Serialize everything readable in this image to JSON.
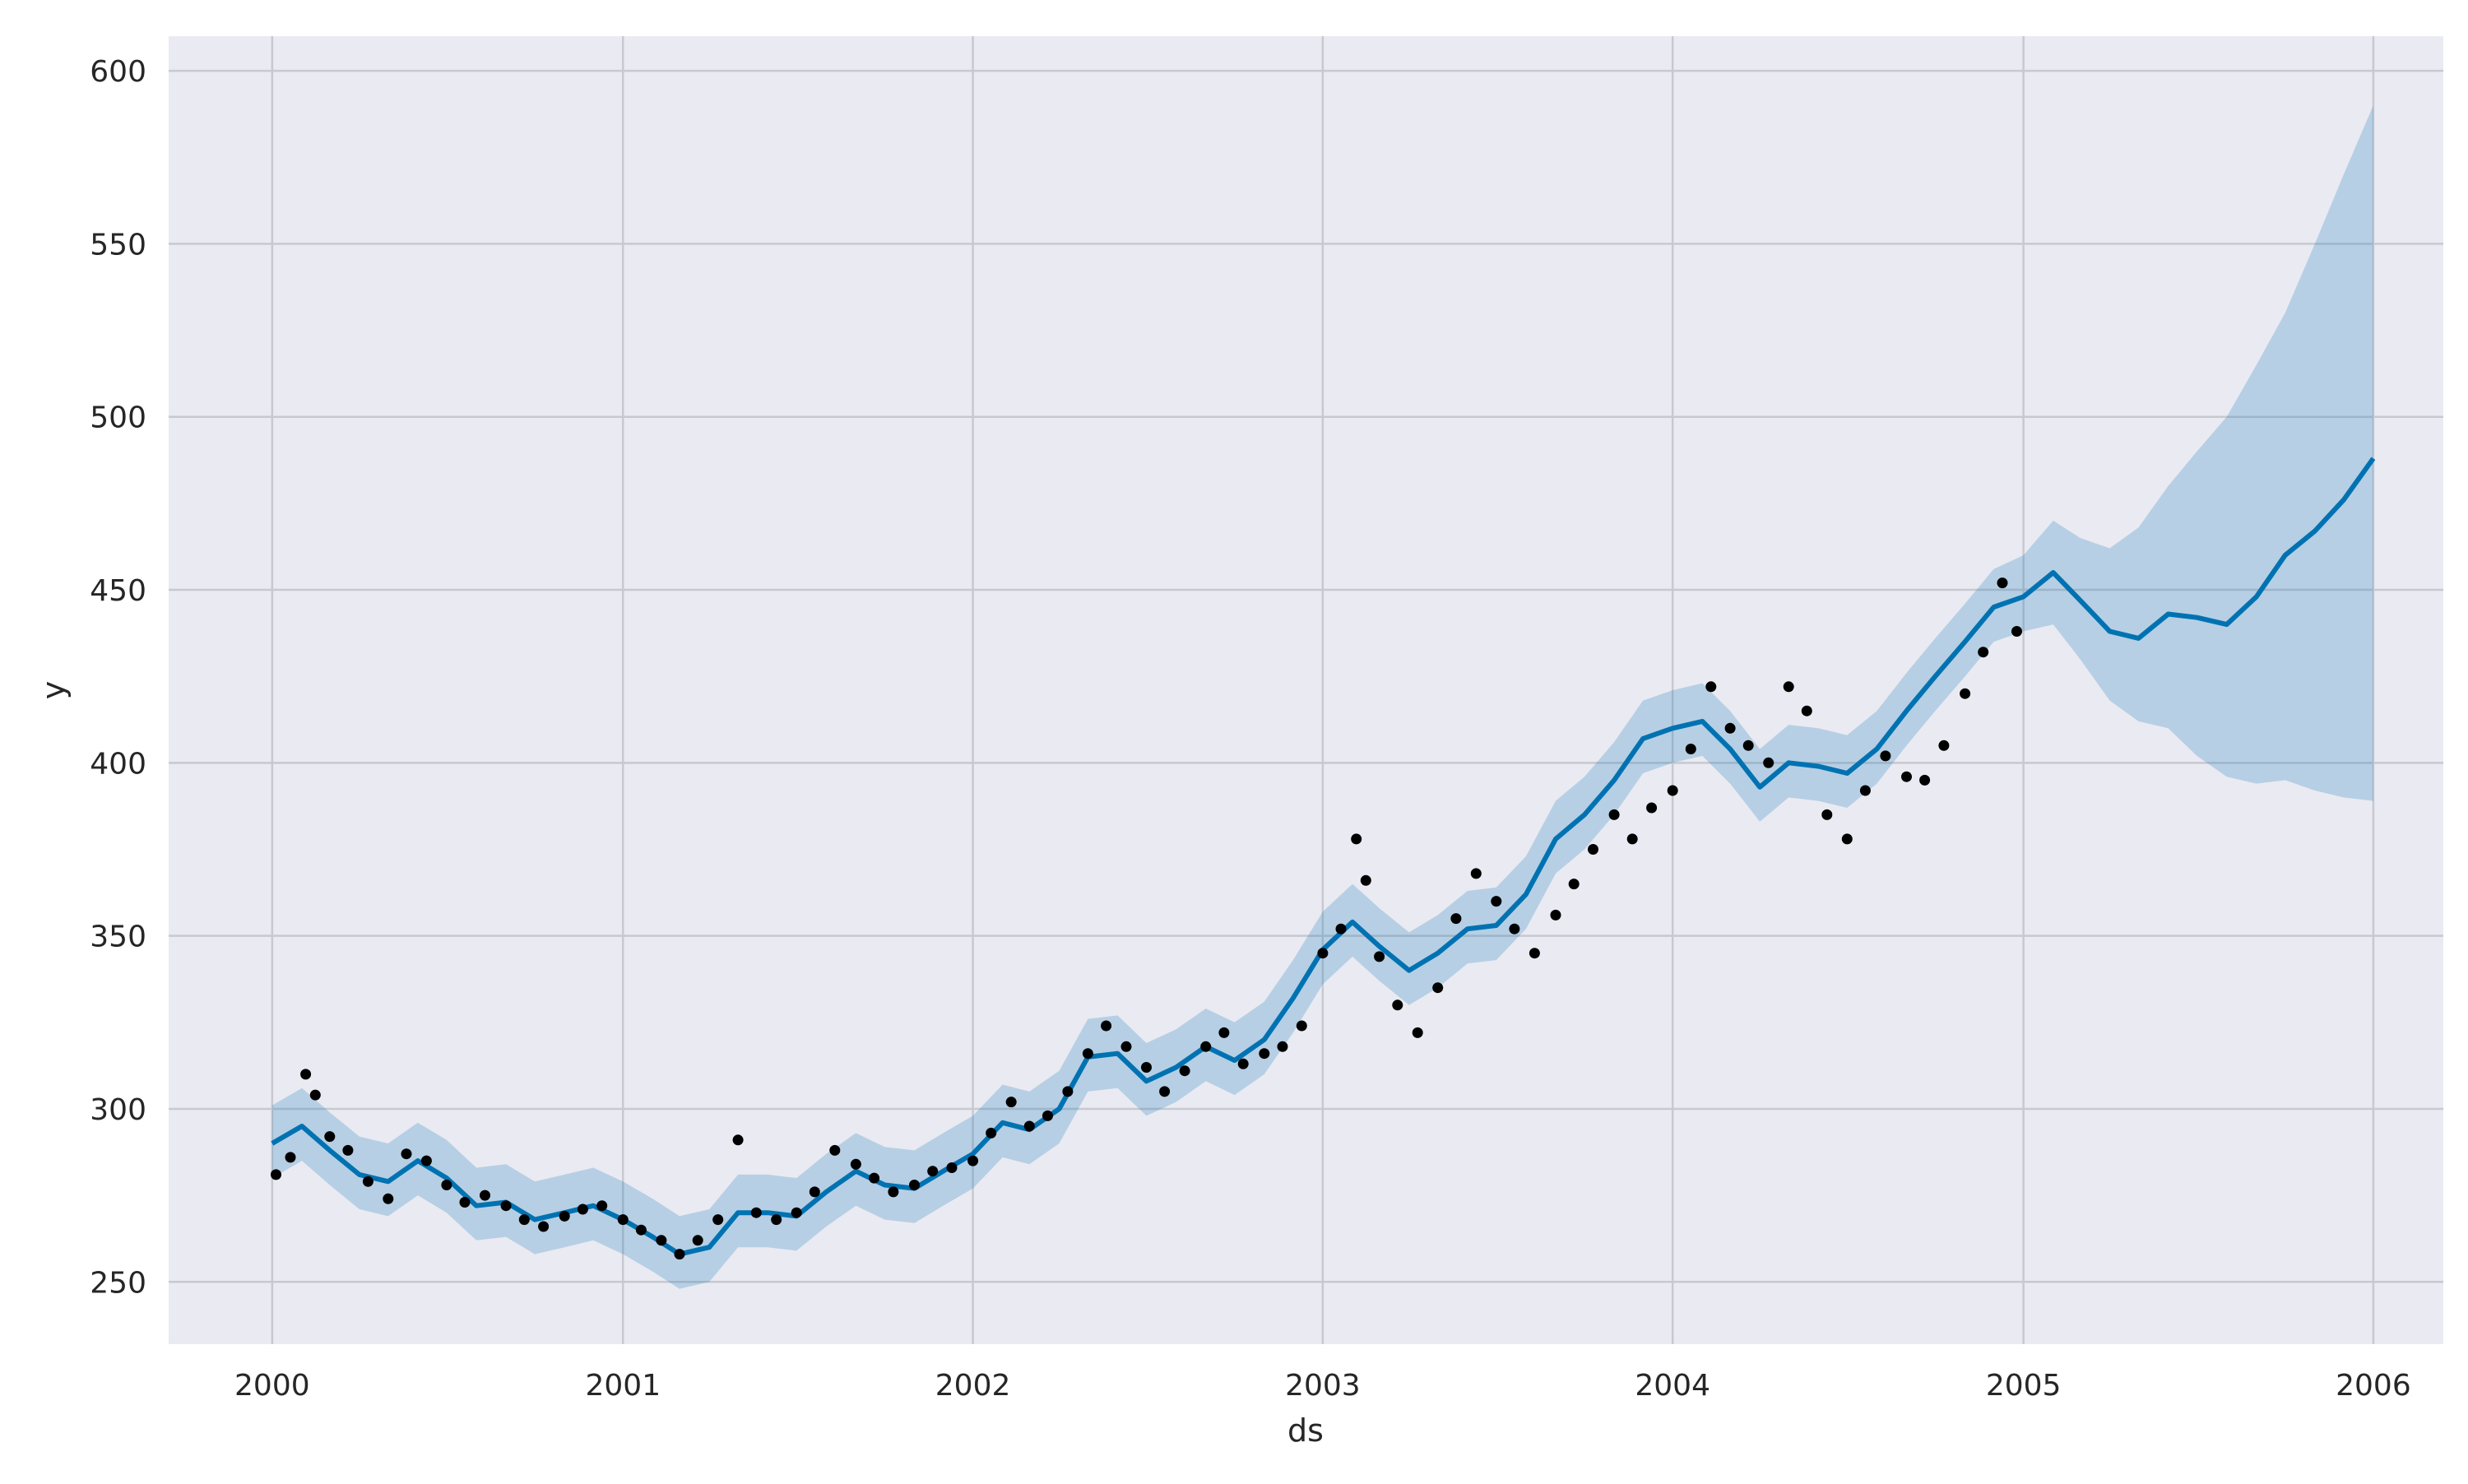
{
  "chart_data": {
    "type": "line",
    "title": "",
    "xlabel": "ds",
    "ylabel": "y",
    "x_ticks": [
      "2000",
      "2001",
      "2002",
      "2003",
      "2004",
      "2005",
      "2006"
    ],
    "y_ticks": [
      "250",
      "300",
      "350",
      "400",
      "450",
      "500",
      "550",
      "600"
    ],
    "x_range": [
      "1999-09-15",
      "2006-03-15"
    ],
    "ylim": [
      232,
      610
    ],
    "grid": true,
    "legend": "none",
    "colors": {
      "background": "#EAEAF2",
      "grid": "#C8C8D0",
      "forecast_line": "#0072B2",
      "uncertainty_band": "#0072B2",
      "observed_points": "#000000"
    },
    "series": [
      {
        "name": "",
        "role": "forecast",
        "x": [
          "2000-01-01",
          "2000-02-01",
          "2000-03-01",
          "2000-04-01",
          "2000-05-01",
          "2000-06-01",
          "2000-07-01",
          "2000-08-01",
          "2000-09-01",
          "2000-10-01",
          "2000-11-01",
          "2000-12-01",
          "2001-01-01",
          "2001-02-01",
          "2001-03-01",
          "2001-04-01",
          "2001-05-01",
          "2001-06-01",
          "2001-07-01",
          "2001-08-01",
          "2001-09-01",
          "2001-10-01",
          "2001-11-01",
          "2001-12-01",
          "2002-01-01",
          "2002-02-01",
          "2002-03-01",
          "2002-04-01",
          "2002-05-01",
          "2002-06-01",
          "2002-07-01",
          "2002-08-01",
          "2002-09-01",
          "2002-10-01",
          "2002-11-01",
          "2002-12-01",
          "2003-01-01",
          "2003-02-01",
          "2003-03-01",
          "2003-04-01",
          "2003-05-01",
          "2003-06-01",
          "2003-07-01",
          "2003-08-01",
          "2003-09-01",
          "2003-10-01",
          "2003-11-01",
          "2003-12-01",
          "2004-01-01",
          "2004-02-01",
          "2004-03-01",
          "2004-04-01",
          "2004-05-01",
          "2004-06-01",
          "2004-07-01",
          "2004-08-01",
          "2004-09-01",
          "2004-10-01",
          "2004-11-01",
          "2004-12-01",
          "2005-01-01",
          "2005-02-01",
          "2005-03-01",
          "2005-04-01",
          "2005-05-01",
          "2005-06-01",
          "2005-07-01",
          "2005-08-01",
          "2005-09-01",
          "2005-10-01",
          "2005-11-01",
          "2005-12-01",
          "2006-01-01"
        ],
        "y": [
          290,
          295,
          288,
          281,
          279,
          285,
          280,
          272,
          273,
          268,
          270,
          272,
          268,
          263,
          258,
          260,
          270,
          270,
          269,
          276,
          282,
          278,
          277,
          282,
          287,
          296,
          294,
          300,
          315,
          316,
          308,
          312,
          318,
          314,
          320,
          332,
          346,
          354,
          347,
          340,
          345,
          352,
          353,
          362,
          378,
          385,
          395,
          407,
          410,
          412,
          404,
          393,
          400,
          399,
          397,
          404,
          415,
          425,
          435,
          445,
          448,
          455,
          447,
          438,
          436,
          443,
          442,
          440,
          448,
          460,
          467,
          476,
          488
        ]
      },
      {
        "name": "",
        "role": "uncertainty_interval",
        "x": [
          "2000-01-01",
          "2000-02-01",
          "2000-03-01",
          "2000-04-01",
          "2000-05-01",
          "2000-06-01",
          "2000-07-01",
          "2000-08-01",
          "2000-09-01",
          "2000-10-01",
          "2000-11-01",
          "2000-12-01",
          "2001-01-01",
          "2001-02-01",
          "2001-03-01",
          "2001-04-01",
          "2001-05-01",
          "2001-06-01",
          "2001-07-01",
          "2001-08-01",
          "2001-09-01",
          "2001-10-01",
          "2001-11-01",
          "2001-12-01",
          "2002-01-01",
          "2002-02-01",
          "2002-03-01",
          "2002-04-01",
          "2002-05-01",
          "2002-06-01",
          "2002-07-01",
          "2002-08-01",
          "2002-09-01",
          "2002-10-01",
          "2002-11-01",
          "2002-12-01",
          "2003-01-01",
          "2003-02-01",
          "2003-03-01",
          "2003-04-01",
          "2003-05-01",
          "2003-06-01",
          "2003-07-01",
          "2003-08-01",
          "2003-09-01",
          "2003-10-01",
          "2003-11-01",
          "2003-12-01",
          "2004-01-01",
          "2004-02-01",
          "2004-03-01",
          "2004-04-01",
          "2004-05-01",
          "2004-06-01",
          "2004-07-01",
          "2004-08-01",
          "2004-09-01",
          "2004-10-01",
          "2004-11-01",
          "2004-12-01",
          "2005-01-01",
          "2005-02-01",
          "2005-03-01",
          "2005-04-01",
          "2005-05-01",
          "2005-06-01",
          "2005-07-01",
          "2005-08-01",
          "2005-09-01",
          "2005-10-01",
          "2005-11-01",
          "2005-12-01",
          "2006-01-01"
        ],
        "lower": [
          280,
          285,
          278,
          271,
          269,
          275,
          270,
          262,
          263,
          258,
          260,
          262,
          258,
          253,
          248,
          250,
          260,
          260,
          259,
          266,
          272,
          268,
          267,
          272,
          277,
          286,
          284,
          290,
          305,
          306,
          298,
          302,
          308,
          304,
          310,
          322,
          336,
          344,
          337,
          330,
          335,
          342,
          343,
          352,
          368,
          375,
          385,
          397,
          400,
          402,
          394,
          383,
          390,
          389,
          387,
          394,
          405,
          415,
          425,
          435,
          438,
          440,
          430,
          418,
          412,
          410,
          402,
          396,
          394,
          395,
          392,
          390,
          389
        ],
        "upper": [
          301,
          306,
          299,
          292,
          290,
          296,
          291,
          283,
          284,
          279,
          281,
          283,
          279,
          274,
          269,
          271,
          281,
          281,
          280,
          287,
          293,
          289,
          288,
          293,
          298,
          307,
          305,
          311,
          326,
          327,
          319,
          323,
          329,
          325,
          331,
          343,
          357,
          365,
          358,
          351,
          356,
          363,
          364,
          373,
          389,
          396,
          406,
          418,
          421,
          423,
          415,
          404,
          411,
          410,
          408,
          415,
          426,
          436,
          446,
          456,
          460,
          470,
          465,
          462,
          468,
          480,
          490,
          500,
          515,
          530,
          550,
          570,
          590
        ]
      }
    ],
    "observed_points_note_free": true,
    "observed": {
      "x": [
        "2000-01-05",
        "2000-01-20",
        "2000-02-05",
        "2000-02-15",
        "2000-03-01",
        "2000-03-20",
        "2000-04-10",
        "2000-05-01",
        "2000-05-20",
        "2000-06-10",
        "2000-07-01",
        "2000-07-20",
        "2000-08-10",
        "2000-09-01",
        "2000-09-20",
        "2000-10-10",
        "2000-11-01",
        "2000-11-20",
        "2000-12-10",
        "2001-01-01",
        "2001-01-20",
        "2001-02-10",
        "2001-03-01",
        "2001-03-20",
        "2001-04-10",
        "2001-05-01",
        "2001-05-20",
        "2001-06-10",
        "2001-07-01",
        "2001-07-20",
        "2001-08-10",
        "2001-09-01",
        "2001-09-20",
        "2001-10-10",
        "2001-11-01",
        "2001-11-20",
        "2001-12-10",
        "2002-01-01",
        "2002-01-20",
        "2002-02-10",
        "2002-03-01",
        "2002-03-20",
        "2002-04-10",
        "2002-05-01",
        "2002-05-20",
        "2002-06-10",
        "2002-07-01",
        "2002-07-20",
        "2002-08-10",
        "2002-09-01",
        "2002-09-20",
        "2002-10-10",
        "2002-11-01",
        "2002-11-20",
        "2002-12-10",
        "2003-01-01",
        "2003-01-20",
        "2003-02-05",
        "2003-02-15",
        "2003-03-01",
        "2003-03-20",
        "2003-04-10",
        "2003-05-01",
        "2003-05-20",
        "2003-06-10",
        "2003-07-01",
        "2003-07-20",
        "2003-08-10",
        "2003-09-01",
        "2003-09-20",
        "2003-10-10",
        "2003-11-01",
        "2003-11-20",
        "2003-12-10",
        "2004-01-01",
        "2004-01-20",
        "2004-02-10",
        "2004-03-01",
        "2004-03-20",
        "2004-04-10",
        "2004-05-01",
        "2004-05-20",
        "2004-06-10",
        "2004-07-01",
        "2004-07-20",
        "2004-08-10",
        "2004-09-01",
        "2004-09-20",
        "2004-10-10",
        "2004-11-01",
        "2004-11-20",
        "2004-12-10",
        "2004-12-25"
      ],
      "y": [
        281,
        286,
        310,
        304,
        292,
        288,
        279,
        274,
        287,
        285,
        278,
        273,
        275,
        272,
        268,
        266,
        269,
        271,
        272,
        268,
        265,
        262,
        258,
        262,
        268,
        291,
        270,
        268,
        270,
        276,
        288,
        284,
        280,
        276,
        278,
        282,
        283,
        285,
        293,
        302,
        295,
        298,
        305,
        316,
        324,
        318,
        312,
        305,
        311,
        318,
        322,
        313,
        316,
        318,
        324,
        345,
        352,
        378,
        366,
        344,
        330,
        322,
        335,
        355,
        368,
        360,
        352,
        345,
        356,
        365,
        375,
        385,
        378,
        387,
        392,
        404,
        422,
        410,
        405,
        400,
        422,
        415,
        385,
        378,
        392,
        402,
        396,
        395,
        405,
        420,
        432,
        452,
        438
      ]
    }
  }
}
